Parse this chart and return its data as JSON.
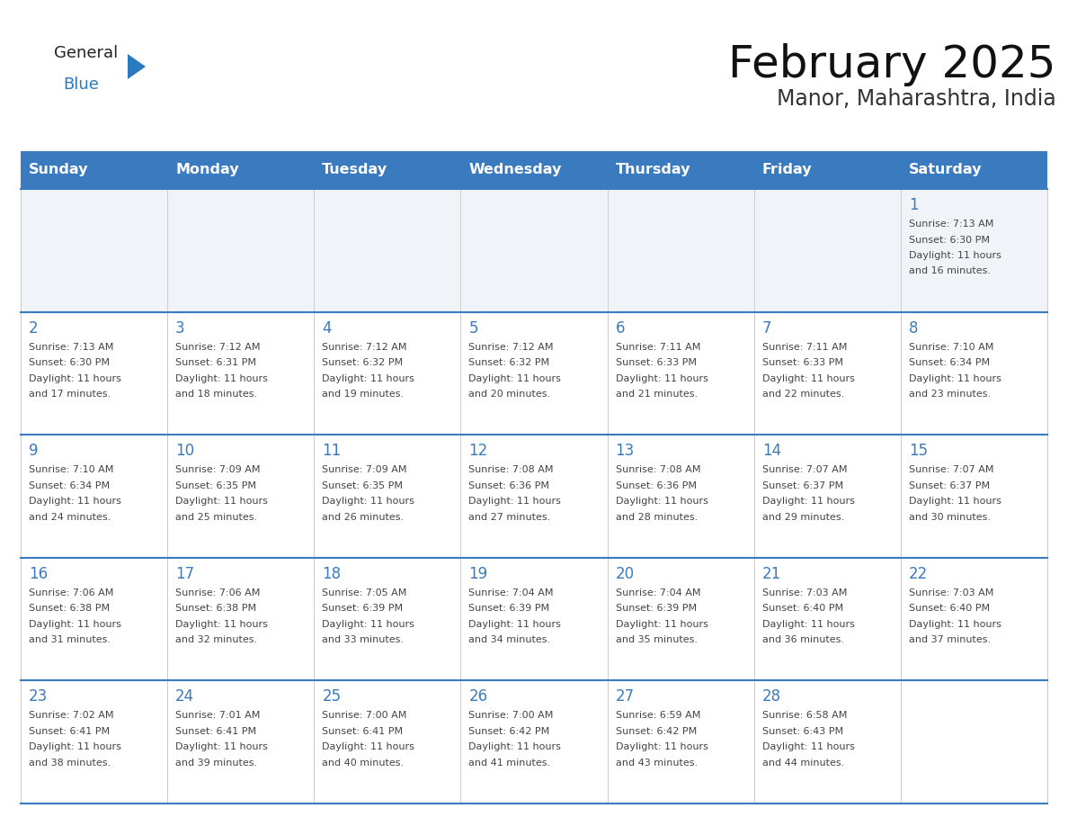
{
  "title": "February 2025",
  "subtitle": "Manor, Maharashtra, India",
  "header_bg_color": "#3a7abf",
  "header_text_color": "#ffffff",
  "cell_bg_white": "#ffffff",
  "cell_bg_gray": "#f0f4f8",
  "border_color": "#3a7abf",
  "day_number_color": "#3a7abf",
  "cell_text_color": "#444444",
  "grid_line_color": "#cccccc",
  "days_of_week": [
    "Sunday",
    "Monday",
    "Tuesday",
    "Wednesday",
    "Thursday",
    "Friday",
    "Saturday"
  ],
  "weeks": [
    [
      {
        "day": null,
        "sunrise": null,
        "sunset": null,
        "daylight_h": null,
        "daylight_m": null
      },
      {
        "day": null,
        "sunrise": null,
        "sunset": null,
        "daylight_h": null,
        "daylight_m": null
      },
      {
        "day": null,
        "sunrise": null,
        "sunset": null,
        "daylight_h": null,
        "daylight_m": null
      },
      {
        "day": null,
        "sunrise": null,
        "sunset": null,
        "daylight_h": null,
        "daylight_m": null
      },
      {
        "day": null,
        "sunrise": null,
        "sunset": null,
        "daylight_h": null,
        "daylight_m": null
      },
      {
        "day": null,
        "sunrise": null,
        "sunset": null,
        "daylight_h": null,
        "daylight_m": null
      },
      {
        "day": 1,
        "sunrise": "7:13 AM",
        "sunset": "6:30 PM",
        "daylight_h": "11 hours",
        "daylight_m": "and 16 minutes."
      }
    ],
    [
      {
        "day": 2,
        "sunrise": "7:13 AM",
        "sunset": "6:30 PM",
        "daylight_h": "11 hours",
        "daylight_m": "and 17 minutes."
      },
      {
        "day": 3,
        "sunrise": "7:12 AM",
        "sunset": "6:31 PM",
        "daylight_h": "11 hours",
        "daylight_m": "and 18 minutes."
      },
      {
        "day": 4,
        "sunrise": "7:12 AM",
        "sunset": "6:32 PM",
        "daylight_h": "11 hours",
        "daylight_m": "and 19 minutes."
      },
      {
        "day": 5,
        "sunrise": "7:12 AM",
        "sunset": "6:32 PM",
        "daylight_h": "11 hours",
        "daylight_m": "and 20 minutes."
      },
      {
        "day": 6,
        "sunrise": "7:11 AM",
        "sunset": "6:33 PM",
        "daylight_h": "11 hours",
        "daylight_m": "and 21 minutes."
      },
      {
        "day": 7,
        "sunrise": "7:11 AM",
        "sunset": "6:33 PM",
        "daylight_h": "11 hours",
        "daylight_m": "and 22 minutes."
      },
      {
        "day": 8,
        "sunrise": "7:10 AM",
        "sunset": "6:34 PM",
        "daylight_h": "11 hours",
        "daylight_m": "and 23 minutes."
      }
    ],
    [
      {
        "day": 9,
        "sunrise": "7:10 AM",
        "sunset": "6:34 PM",
        "daylight_h": "11 hours",
        "daylight_m": "and 24 minutes."
      },
      {
        "day": 10,
        "sunrise": "7:09 AM",
        "sunset": "6:35 PM",
        "daylight_h": "11 hours",
        "daylight_m": "and 25 minutes."
      },
      {
        "day": 11,
        "sunrise": "7:09 AM",
        "sunset": "6:35 PM",
        "daylight_h": "11 hours",
        "daylight_m": "and 26 minutes."
      },
      {
        "day": 12,
        "sunrise": "7:08 AM",
        "sunset": "6:36 PM",
        "daylight_h": "11 hours",
        "daylight_m": "and 27 minutes."
      },
      {
        "day": 13,
        "sunrise": "7:08 AM",
        "sunset": "6:36 PM",
        "daylight_h": "11 hours",
        "daylight_m": "and 28 minutes."
      },
      {
        "day": 14,
        "sunrise": "7:07 AM",
        "sunset": "6:37 PM",
        "daylight_h": "11 hours",
        "daylight_m": "and 29 minutes."
      },
      {
        "day": 15,
        "sunrise": "7:07 AM",
        "sunset": "6:37 PM",
        "daylight_h": "11 hours",
        "daylight_m": "and 30 minutes."
      }
    ],
    [
      {
        "day": 16,
        "sunrise": "7:06 AM",
        "sunset": "6:38 PM",
        "daylight_h": "11 hours",
        "daylight_m": "and 31 minutes."
      },
      {
        "day": 17,
        "sunrise": "7:06 AM",
        "sunset": "6:38 PM",
        "daylight_h": "11 hours",
        "daylight_m": "and 32 minutes."
      },
      {
        "day": 18,
        "sunrise": "7:05 AM",
        "sunset": "6:39 PM",
        "daylight_h": "11 hours",
        "daylight_m": "and 33 minutes."
      },
      {
        "day": 19,
        "sunrise": "7:04 AM",
        "sunset": "6:39 PM",
        "daylight_h": "11 hours",
        "daylight_m": "and 34 minutes."
      },
      {
        "day": 20,
        "sunrise": "7:04 AM",
        "sunset": "6:39 PM",
        "daylight_h": "11 hours",
        "daylight_m": "and 35 minutes."
      },
      {
        "day": 21,
        "sunrise": "7:03 AM",
        "sunset": "6:40 PM",
        "daylight_h": "11 hours",
        "daylight_m": "and 36 minutes."
      },
      {
        "day": 22,
        "sunrise": "7:03 AM",
        "sunset": "6:40 PM",
        "daylight_h": "11 hours",
        "daylight_m": "and 37 minutes."
      }
    ],
    [
      {
        "day": 23,
        "sunrise": "7:02 AM",
        "sunset": "6:41 PM",
        "daylight_h": "11 hours",
        "daylight_m": "and 38 minutes."
      },
      {
        "day": 24,
        "sunrise": "7:01 AM",
        "sunset": "6:41 PM",
        "daylight_h": "11 hours",
        "daylight_m": "and 39 minutes."
      },
      {
        "day": 25,
        "sunrise": "7:00 AM",
        "sunset": "6:41 PM",
        "daylight_h": "11 hours",
        "daylight_m": "and 40 minutes."
      },
      {
        "day": 26,
        "sunrise": "7:00 AM",
        "sunset": "6:42 PM",
        "daylight_h": "11 hours",
        "daylight_m": "and 41 minutes."
      },
      {
        "day": 27,
        "sunrise": "6:59 AM",
        "sunset": "6:42 PM",
        "daylight_h": "11 hours",
        "daylight_m": "and 43 minutes."
      },
      {
        "day": 28,
        "sunrise": "6:58 AM",
        "sunset": "6:43 PM",
        "daylight_h": "11 hours",
        "daylight_m": "and 44 minutes."
      },
      {
        "day": null,
        "sunrise": null,
        "sunset": null,
        "daylight_h": null,
        "daylight_m": null
      }
    ]
  ],
  "logo_text1": "General",
  "logo_text2": "Blue",
  "logo_color1": "#222222",
  "logo_color2": "#2a7abf",
  "logo_triangle_color": "#2a7abf",
  "title_fontsize": 36,
  "subtitle_fontsize": 17,
  "header_fontsize": 11.5,
  "day_num_fontsize": 12,
  "cell_text_fontsize": 8.0
}
